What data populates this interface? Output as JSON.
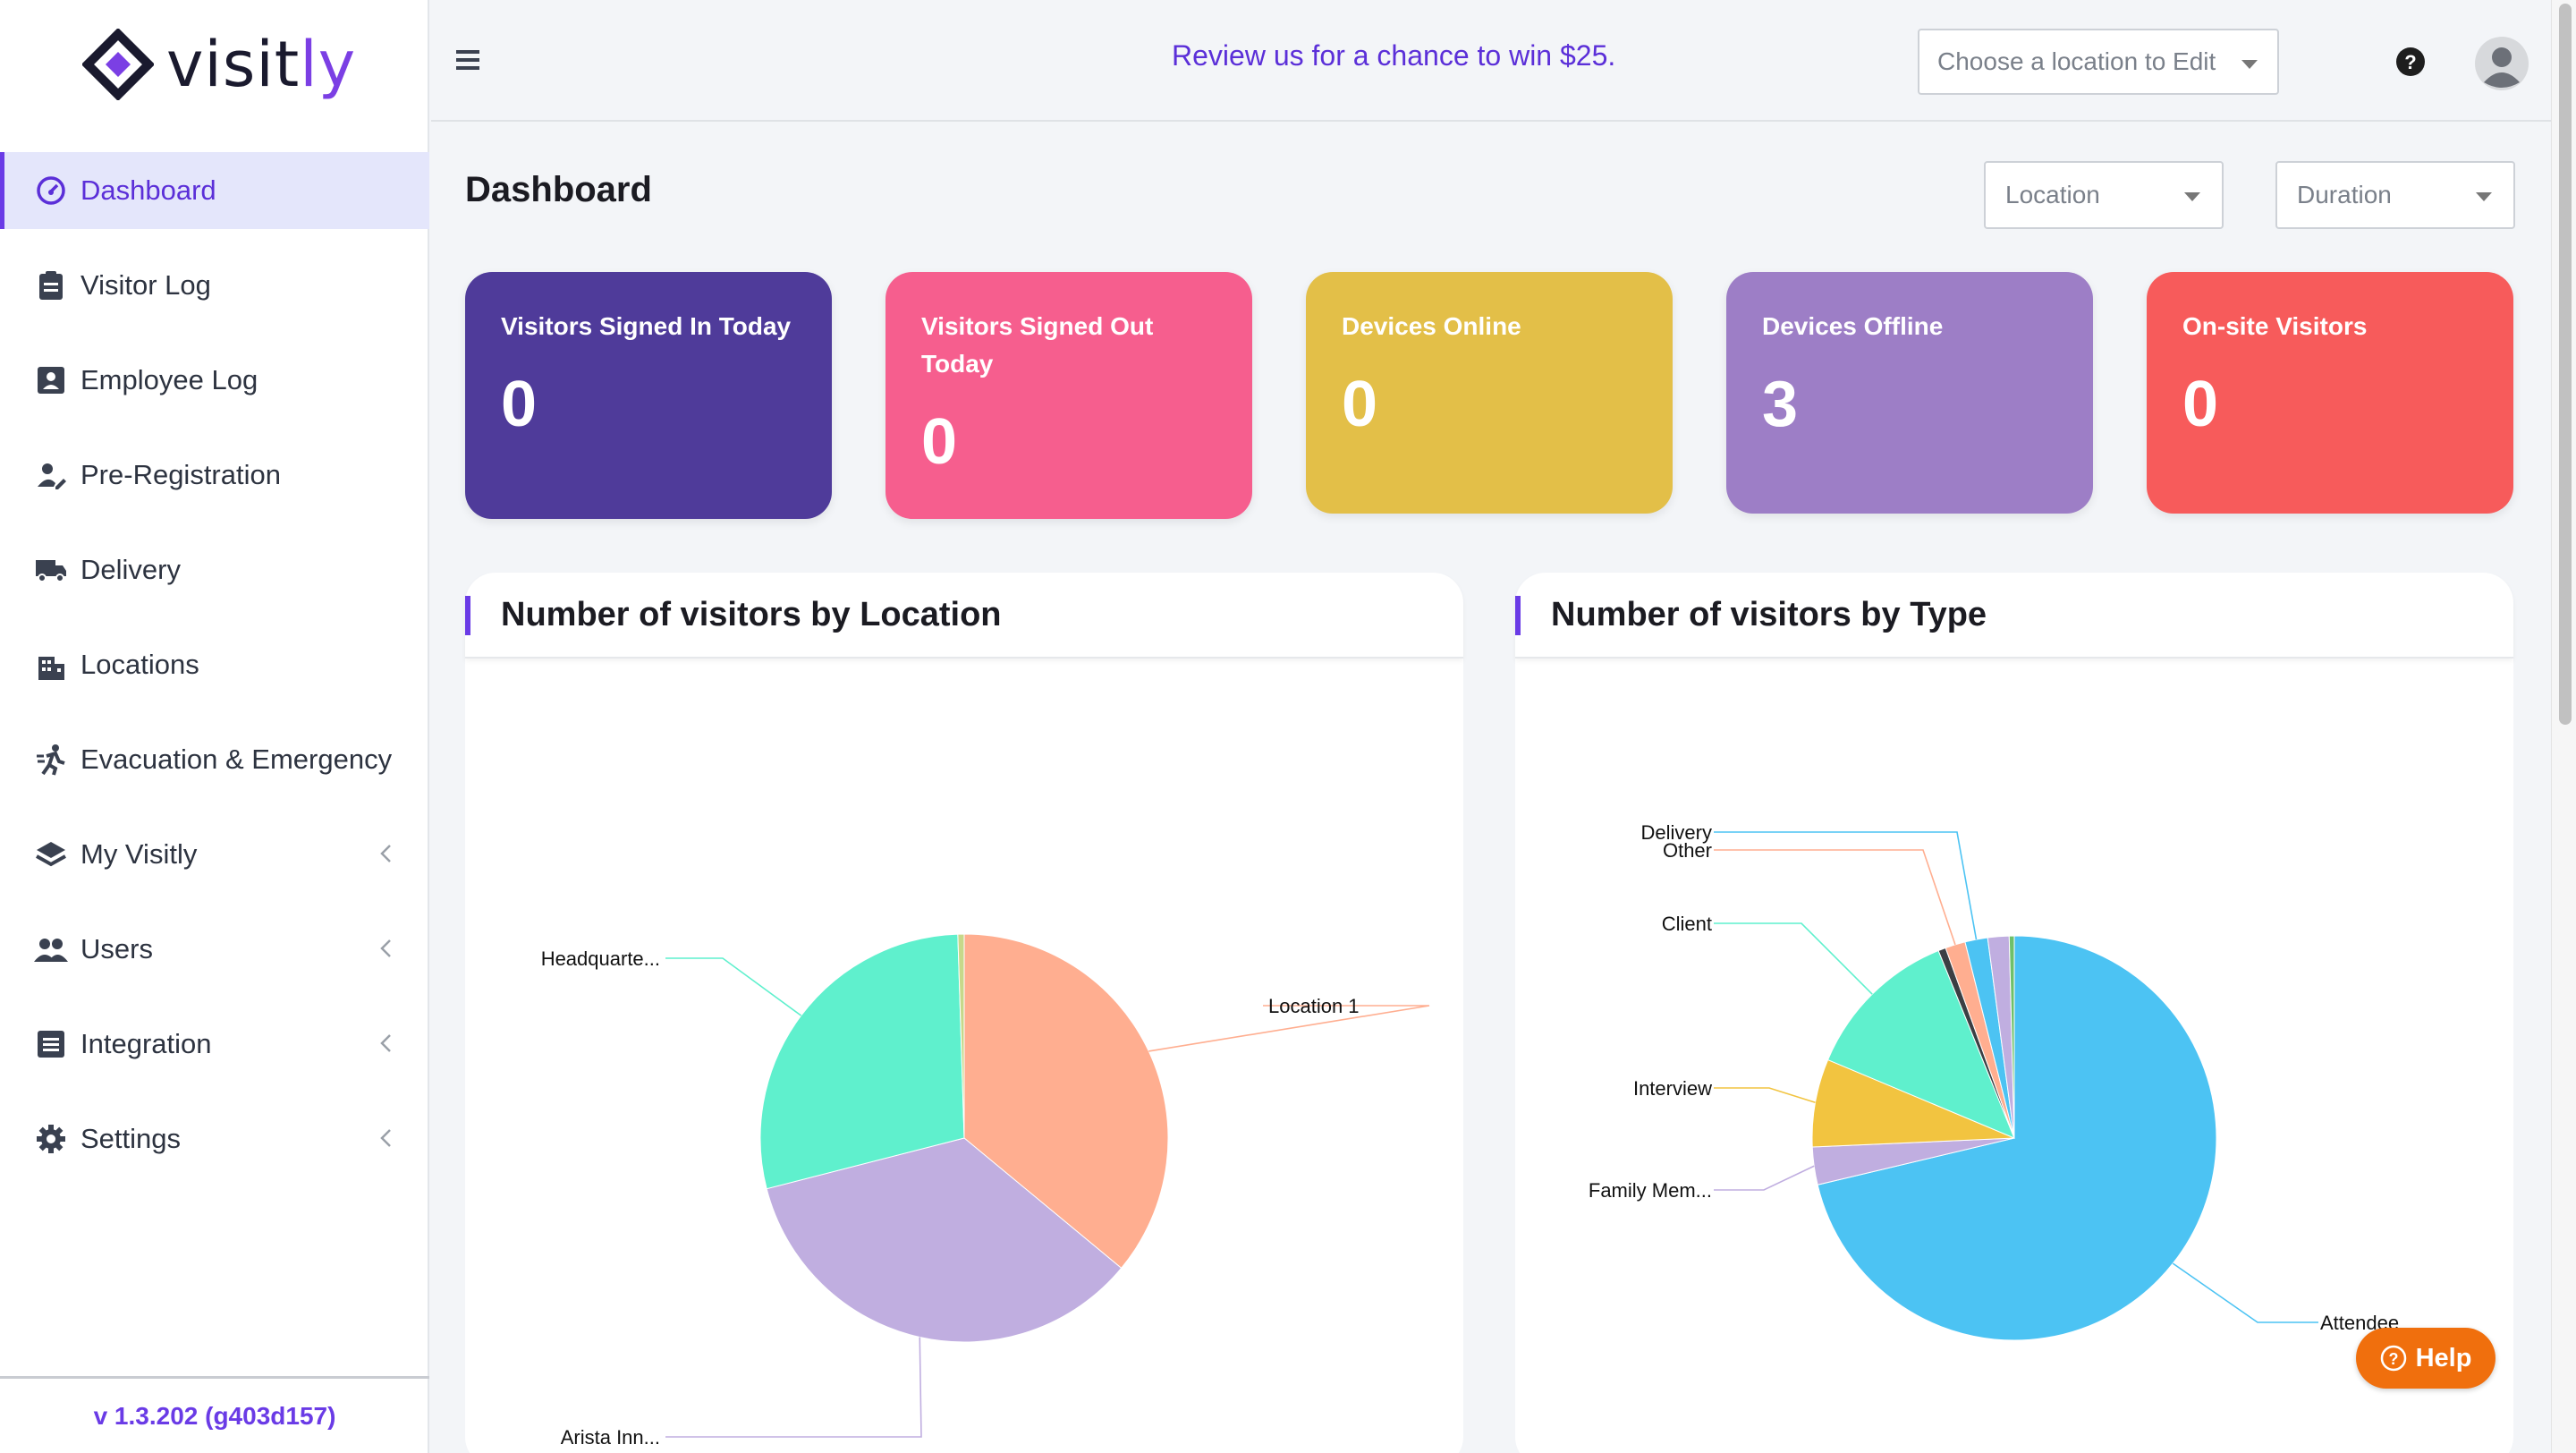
{
  "brand": {
    "name_main": "visit",
    "name_accent": "ly",
    "accent_color": "#7b3fe4"
  },
  "sidebar": {
    "items": [
      {
        "label": "Dashboard",
        "icon": "dashboard-gauge-icon",
        "active": true
      },
      {
        "label": "Visitor Log",
        "icon": "clipboard-icon"
      },
      {
        "label": "Employee Log",
        "icon": "id-badge-icon"
      },
      {
        "label": "Pre-Registration",
        "icon": "person-edit-icon"
      },
      {
        "label": "Delivery",
        "icon": "truck-icon"
      },
      {
        "label": "Locations",
        "icon": "building-icon"
      },
      {
        "label": "Evacuation & Emergency",
        "icon": "running-person-icon"
      },
      {
        "label": "My Visitly",
        "icon": "layers-icon",
        "expandable": true
      },
      {
        "label": "Users",
        "icon": "users-icon",
        "expandable": true
      },
      {
        "label": "Integration",
        "icon": "integration-icon",
        "expandable": true
      },
      {
        "label": "Settings",
        "icon": "gear-icon",
        "expandable": true
      }
    ],
    "version": "v 1.3.202 (g403d157)"
  },
  "topbar": {
    "promo": "Review us for a chance to win $25.",
    "location_select_placeholder": "Choose a location to Edit"
  },
  "main": {
    "title": "Dashboard",
    "filters": {
      "location": "Location",
      "duration": "Duration"
    },
    "cards": [
      {
        "label": "Visitors Signed In Today",
        "value": "0",
        "color": "#4f3b9a"
      },
      {
        "label": "Visitors Signed Out Today",
        "value": "0",
        "color": "#f65e8e"
      },
      {
        "label": "Devices Online",
        "value": "0",
        "color": "#e3bf48"
      },
      {
        "label": "Devices Offline",
        "value": "3",
        "color": "#9d7ec6"
      },
      {
        "label": "On-site Visitors",
        "value": "0",
        "color": "#f75b5b"
      }
    ],
    "panels": {
      "location_title": "Number of visitors by Location",
      "type_title": "Number of visitors by Type"
    }
  },
  "help_button": "Help",
  "chart_data": [
    {
      "type": "pie",
      "title": "Number of visitors by Location",
      "slices": [
        {
          "label": "Location 1",
          "value": 36,
          "color": "#ffae90"
        },
        {
          "label": "Arista Inn...",
          "value": 35,
          "color": "#c0aee0"
        },
        {
          "label": "Headquarte...",
          "value": 28.5,
          "color": "#5ff0cd"
        },
        {
          "label": "",
          "value": 0.5,
          "color": "#c7d88a"
        }
      ]
    },
    {
      "type": "pie",
      "title": "Number of visitors by Type",
      "slices": [
        {
          "label": "Attendee",
          "value": 71,
          "color": "#4cc3f3"
        },
        {
          "label": "Family Mem...",
          "value": 3,
          "color": "#c0aee0"
        },
        {
          "label": "Interview",
          "value": 7,
          "color": "#f2c440"
        },
        {
          "label": "Client",
          "value": 12.5,
          "color": "#5ff0cd"
        },
        {
          "label": "",
          "value": 0.6,
          "color": "#3b3f44"
        },
        {
          "label": "Other",
          "value": 1.6,
          "color": "#ffae90"
        },
        {
          "label": "Delivery",
          "value": 1.8,
          "color": "#4cc3f3"
        },
        {
          "label": "",
          "value": 1.7,
          "color": "#c0aee0"
        },
        {
          "label": "",
          "value": 0.4,
          "color": "#6ec06a"
        }
      ]
    }
  ]
}
